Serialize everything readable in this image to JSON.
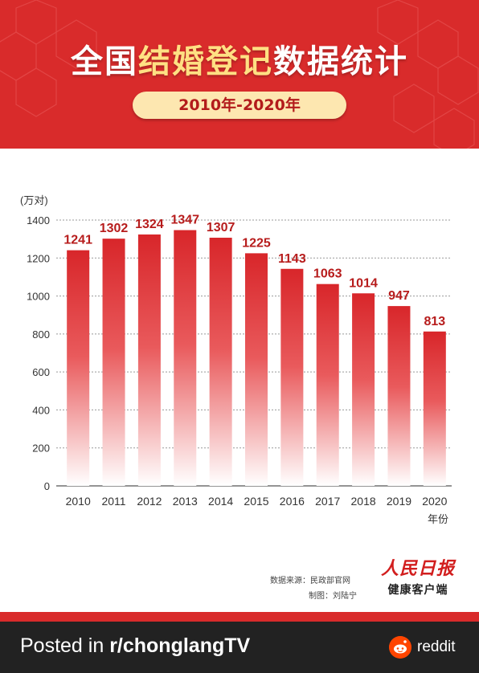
{
  "header": {
    "title_part1": "全国",
    "title_highlight": "结婚登记",
    "title_part2": "数据统计",
    "subtitle": "2010年-2020年"
  },
  "colors": {
    "brand_red": "#d92b2b",
    "highlight_yellow": "#ffe083",
    "pill_bg": "#fde7b0",
    "bar_top": "#d8262a",
    "label_red": "#b71c1c"
  },
  "chart_data": {
    "type": "bar",
    "categories": [
      "2010",
      "2011",
      "2012",
      "2013",
      "2014",
      "2015",
      "2016",
      "2017",
      "2018",
      "2019",
      "2020"
    ],
    "values": [
      1241,
      1302,
      1324,
      1347,
      1307,
      1225,
      1143,
      1063,
      1014,
      947,
      813
    ],
    "ylabel": "(万对)",
    "xlabel": "年份",
    "ylim": [
      0,
      1400
    ],
    "yticks": [
      0,
      200,
      400,
      600,
      800,
      1000,
      1200,
      1400
    ],
    "grid": true,
    "grid_style": "dotted"
  },
  "source": {
    "data_source": "数据来源：民政部官网",
    "made_by": "制图：刘陆宁"
  },
  "logo": {
    "main": "人民日报",
    "sub": "健康客户端"
  },
  "footer": {
    "posted_prefix": "Posted in ",
    "subreddit": "r/chonglangTV",
    "brand": "reddit"
  }
}
